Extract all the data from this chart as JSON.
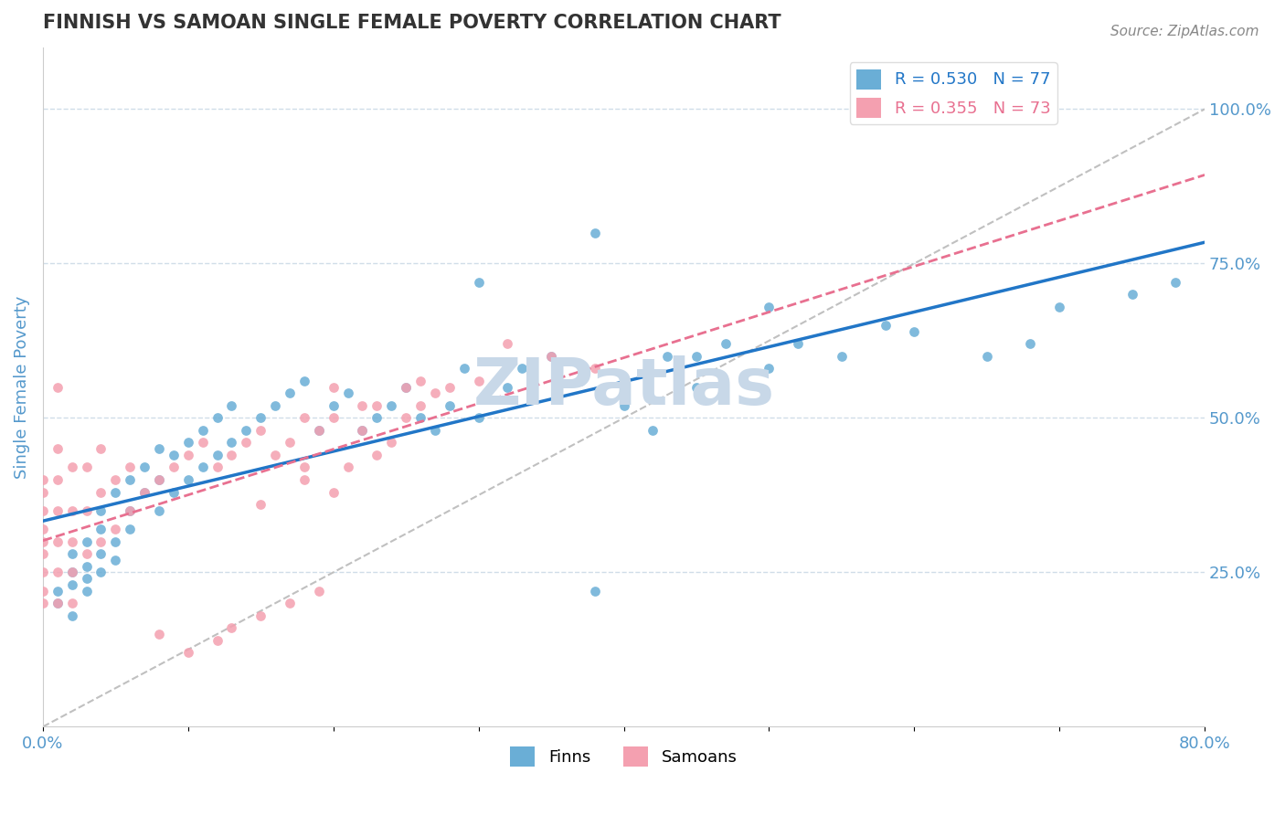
{
  "title": "FINNISH VS SAMOAN SINGLE FEMALE POVERTY CORRELATION CHART",
  "source_text": "Source: ZipAtlas.com",
  "xlabel": "",
  "ylabel": "Single Female Poverty",
  "xlim": [
    0.0,
    0.8
  ],
  "ylim": [
    0.0,
    1.1
  ],
  "xticks": [
    0.0,
    0.1,
    0.2,
    0.3,
    0.4,
    0.5,
    0.6,
    0.7,
    0.8
  ],
  "xticklabels": [
    "0.0%",
    "",
    "",
    "",
    "",
    "",
    "",
    "",
    "80.0%"
  ],
  "yticks_right": [
    0.25,
    0.5,
    0.75,
    1.0
  ],
  "ytick_right_labels": [
    "25.0%",
    "50.0%",
    "75.0%",
    "100.0%"
  ],
  "legend_r1": "R = 0.530",
  "legend_n1": "N = 77",
  "legend_r2": "R = 0.355",
  "legend_n2": "N = 73",
  "finns_color": "#6aaed6",
  "samoans_color": "#f4a0b0",
  "finns_line_color": "#2176c7",
  "samoans_line_color": "#e87090",
  "diagonal_color": "#c0c0c0",
  "watermark_color": "#c8d8e8",
  "title_color": "#333333",
  "axis_label_color": "#5599cc",
  "grid_color": "#d0dde8",
  "background_color": "#ffffff",
  "finns_x": [
    0.01,
    0.01,
    0.02,
    0.02,
    0.02,
    0.02,
    0.03,
    0.03,
    0.03,
    0.03,
    0.04,
    0.04,
    0.04,
    0.04,
    0.05,
    0.05,
    0.05,
    0.06,
    0.06,
    0.06,
    0.07,
    0.07,
    0.08,
    0.08,
    0.08,
    0.09,
    0.09,
    0.1,
    0.1,
    0.11,
    0.11,
    0.12,
    0.12,
    0.13,
    0.13,
    0.14,
    0.15,
    0.16,
    0.17,
    0.18,
    0.19,
    0.2,
    0.21,
    0.22,
    0.23,
    0.24,
    0.25,
    0.26,
    0.27,
    0.28,
    0.29,
    0.3,
    0.32,
    0.33,
    0.35,
    0.37,
    0.38,
    0.4,
    0.42,
    0.43,
    0.45,
    0.47,
    0.5,
    0.52,
    0.55,
    0.58,
    0.6,
    0.4,
    0.5,
    0.38,
    0.45,
    0.3,
    0.65,
    0.68,
    0.7,
    0.75,
    0.78
  ],
  "finns_y": [
    0.2,
    0.22,
    0.18,
    0.25,
    0.23,
    0.28,
    0.22,
    0.26,
    0.3,
    0.24,
    0.28,
    0.32,
    0.25,
    0.35,
    0.3,
    0.38,
    0.27,
    0.35,
    0.4,
    0.32,
    0.38,
    0.42,
    0.35,
    0.4,
    0.45,
    0.38,
    0.44,
    0.4,
    0.46,
    0.42,
    0.48,
    0.44,
    0.5,
    0.46,
    0.52,
    0.48,
    0.5,
    0.52,
    0.54,
    0.56,
    0.48,
    0.52,
    0.54,
    0.48,
    0.5,
    0.52,
    0.55,
    0.5,
    0.48,
    0.52,
    0.58,
    0.5,
    0.55,
    0.58,
    0.6,
    0.56,
    0.22,
    0.52,
    0.48,
    0.6,
    0.55,
    0.62,
    0.58,
    0.62,
    0.6,
    0.65,
    0.64,
    0.55,
    0.68,
    0.8,
    0.6,
    0.72,
    0.6,
    0.62,
    0.68,
    0.7,
    0.72
  ],
  "samoans_x": [
    0.0,
    0.0,
    0.0,
    0.0,
    0.0,
    0.0,
    0.0,
    0.0,
    0.0,
    0.01,
    0.01,
    0.01,
    0.01,
    0.01,
    0.01,
    0.01,
    0.02,
    0.02,
    0.02,
    0.02,
    0.02,
    0.03,
    0.03,
    0.03,
    0.04,
    0.04,
    0.04,
    0.05,
    0.05,
    0.06,
    0.06,
    0.07,
    0.08,
    0.09,
    0.1,
    0.11,
    0.12,
    0.13,
    0.14,
    0.15,
    0.16,
    0.17,
    0.18,
    0.19,
    0.2,
    0.22,
    0.23,
    0.24,
    0.25,
    0.26,
    0.27,
    0.2,
    0.15,
    0.18,
    0.21,
    0.23,
    0.08,
    0.1,
    0.12,
    0.13,
    0.15,
    0.17,
    0.19,
    0.25,
    0.2,
    0.22,
    0.18,
    0.26,
    0.28,
    0.3,
    0.32,
    0.35,
    0.38
  ],
  "samoans_y": [
    0.2,
    0.22,
    0.25,
    0.28,
    0.3,
    0.32,
    0.35,
    0.38,
    0.4,
    0.2,
    0.25,
    0.3,
    0.35,
    0.4,
    0.45,
    0.55,
    0.2,
    0.25,
    0.3,
    0.35,
    0.42,
    0.28,
    0.35,
    0.42,
    0.3,
    0.38,
    0.45,
    0.32,
    0.4,
    0.35,
    0.42,
    0.38,
    0.4,
    0.42,
    0.44,
    0.46,
    0.42,
    0.44,
    0.46,
    0.48,
    0.44,
    0.46,
    0.42,
    0.48,
    0.5,
    0.48,
    0.52,
    0.46,
    0.5,
    0.52,
    0.54,
    0.38,
    0.36,
    0.4,
    0.42,
    0.44,
    0.15,
    0.12,
    0.14,
    0.16,
    0.18,
    0.2,
    0.22,
    0.55,
    0.55,
    0.52,
    0.5,
    0.56,
    0.55,
    0.56,
    0.62,
    0.6,
    0.58
  ]
}
